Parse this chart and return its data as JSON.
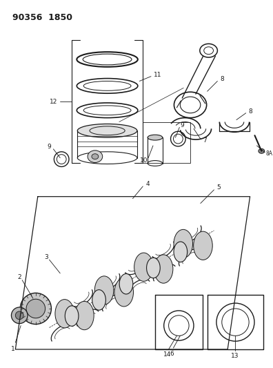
{
  "title": "90356  1850",
  "bg": "#ffffff",
  "lc": "#1a1a1a",
  "fig_w": 3.96,
  "fig_h": 5.33,
  "dpi": 100
}
